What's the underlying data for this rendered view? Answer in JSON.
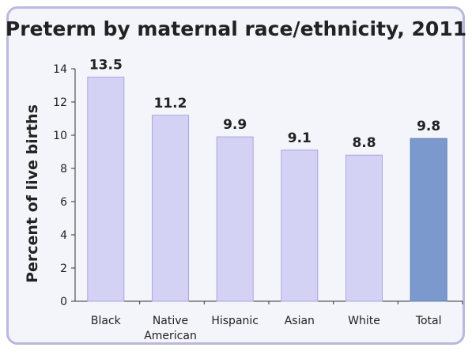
{
  "chart_data": {
    "type": "bar",
    "title": "Preterm by maternal race/ethnicity, 2011",
    "xlabel": "",
    "ylabel": "Percent of live births",
    "categories": [
      "Black",
      "Native American",
      "Hispanic",
      "Asian",
      "White",
      "Total"
    ],
    "category_lines": [
      [
        "Black"
      ],
      [
        "Native",
        "American"
      ],
      [
        "Hispanic"
      ],
      [
        "Asian"
      ],
      [
        "White"
      ],
      [
        "Total"
      ]
    ],
    "values": [
      13.5,
      11.2,
      9.9,
      9.1,
      8.8,
      9.8
    ],
    "value_labels": [
      "13.5",
      "11.2",
      "9.9",
      "9.1",
      "8.8",
      "9.8"
    ],
    "ylim": [
      0,
      14
    ],
    "yticks": [
      0,
      2,
      4,
      6,
      8,
      10,
      12,
      14
    ],
    "grid": false,
    "colors": {
      "bar": "#d4d2f4",
      "bar_stroke": "#a9a6dc",
      "highlight_bar": "#7b99cc",
      "highlight_stroke": "#5f7fb8",
      "highlight_category": "Total",
      "background": "#f4f4fb",
      "frame": "#b9b9de"
    }
  }
}
